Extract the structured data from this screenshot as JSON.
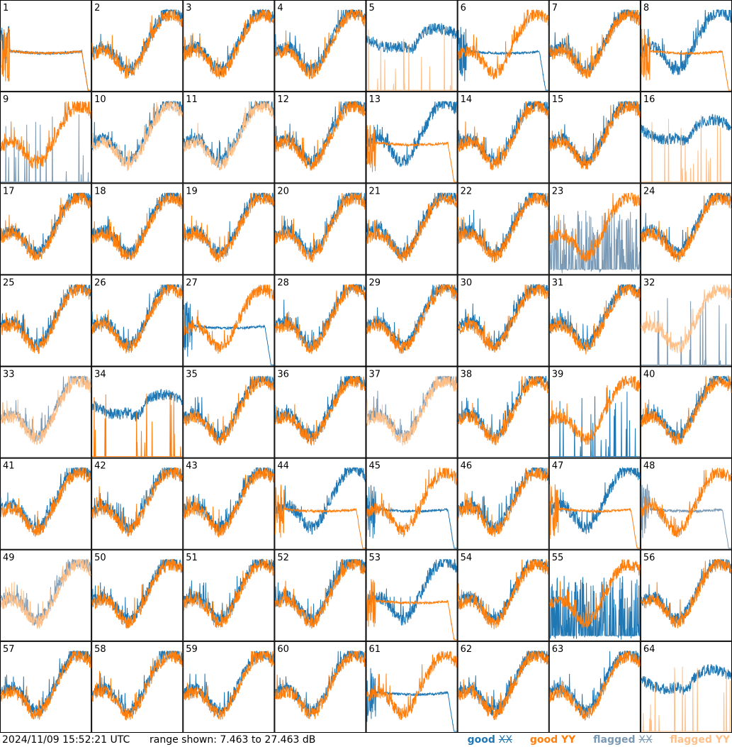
{
  "chart_data": {
    "type": "line",
    "layout": {
      "rows": 8,
      "cols": 8
    },
    "range_db": [
      7.463,
      27.463
    ],
    "series": [
      {
        "name": "good XX",
        "color": "#1f77b4"
      },
      {
        "name": "good YY",
        "color": "#ff7f0e"
      },
      {
        "name": "flagged XX",
        "color": "#7a99b4"
      },
      {
        "name": "flagged YY",
        "color": "#ffbf87"
      }
    ],
    "panels": [
      {
        "label": "1",
        "xx": "good",
        "yy": "good",
        "xx_shape": "decay",
        "yy_shape": "decay"
      },
      {
        "label": "2",
        "xx": "good",
        "yy": "good",
        "xx_shape": "normal",
        "yy_shape": "normal"
      },
      {
        "label": "3",
        "xx": "good",
        "yy": "good",
        "xx_shape": "normal",
        "yy_shape": "normal"
      },
      {
        "label": "4",
        "xx": "good",
        "yy": "good",
        "xx_shape": "normal",
        "yy_shape": "normal"
      },
      {
        "label": "5",
        "xx": "good",
        "yy": "flagged",
        "xx_shape": "high",
        "yy_shape": "spikes"
      },
      {
        "label": "6",
        "xx": "good",
        "yy": "good",
        "xx_shape": "decay",
        "yy_shape": "normal"
      },
      {
        "label": "7",
        "xx": "good",
        "yy": "good",
        "xx_shape": "normal",
        "yy_shape": "normal"
      },
      {
        "label": "8",
        "xx": "good",
        "yy": "good",
        "xx_shape": "normal",
        "yy_shape": "decay"
      },
      {
        "label": "9",
        "xx": "flagged",
        "yy": "good",
        "xx_shape": "spikes",
        "yy_shape": "normal"
      },
      {
        "label": "10",
        "xx": "good",
        "yy": "flagged",
        "xx_shape": "normal",
        "yy_shape": "normal"
      },
      {
        "label": "11",
        "xx": "good",
        "yy": "flagged",
        "xx_shape": "normal",
        "yy_shape": "normal"
      },
      {
        "label": "12",
        "xx": "good",
        "yy": "good",
        "xx_shape": "normal",
        "yy_shape": "normal"
      },
      {
        "label": "13",
        "xx": "good",
        "yy": "good",
        "xx_shape": "normal",
        "yy_shape": "decay"
      },
      {
        "label": "14",
        "xx": "good",
        "yy": "good",
        "xx_shape": "normal",
        "yy_shape": "normal"
      },
      {
        "label": "15",
        "xx": "good",
        "yy": "good",
        "xx_shape": "normal",
        "yy_shape": "normal"
      },
      {
        "label": "16",
        "xx": "good",
        "yy": "flagged",
        "xx_shape": "high",
        "yy_shape": "spikes"
      },
      {
        "label": "17",
        "xx": "good",
        "yy": "good",
        "xx_shape": "normal",
        "yy_shape": "normal"
      },
      {
        "label": "18",
        "xx": "good",
        "yy": "good",
        "xx_shape": "normal",
        "yy_shape": "normal"
      },
      {
        "label": "19",
        "xx": "good",
        "yy": "good",
        "xx_shape": "normal",
        "yy_shape": "normal"
      },
      {
        "label": "20",
        "xx": "good",
        "yy": "good",
        "xx_shape": "normal",
        "yy_shape": "normal"
      },
      {
        "label": "21",
        "xx": "good",
        "yy": "good",
        "xx_shape": "normal",
        "yy_shape": "normal"
      },
      {
        "label": "22",
        "xx": "good",
        "yy": "good",
        "xx_shape": "normal",
        "yy_shape": "normal"
      },
      {
        "label": "23",
        "xx": "flagged",
        "yy": "good",
        "xx_shape": "noisy",
        "yy_shape": "normal"
      },
      {
        "label": "24",
        "xx": "good",
        "yy": "good",
        "xx_shape": "normal",
        "yy_shape": "normal"
      },
      {
        "label": "25",
        "xx": "good",
        "yy": "good",
        "xx_shape": "normal",
        "yy_shape": "normal"
      },
      {
        "label": "26",
        "xx": "good",
        "yy": "good",
        "xx_shape": "normal",
        "yy_shape": "normal"
      },
      {
        "label": "27",
        "xx": "good",
        "yy": "good",
        "xx_shape": "decay",
        "yy_shape": "normal"
      },
      {
        "label": "28",
        "xx": "good",
        "yy": "good",
        "xx_shape": "normal",
        "yy_shape": "normal"
      },
      {
        "label": "29",
        "xx": "good",
        "yy": "good",
        "xx_shape": "normal",
        "yy_shape": "normal"
      },
      {
        "label": "30",
        "xx": "good",
        "yy": "good",
        "xx_shape": "normal",
        "yy_shape": "normal"
      },
      {
        "label": "31",
        "xx": "good",
        "yy": "good",
        "xx_shape": "normal",
        "yy_shape": "normal"
      },
      {
        "label": "32",
        "xx": "flagged",
        "yy": "flagged",
        "xx_shape": "spikes",
        "yy_shape": "normal"
      },
      {
        "label": "33",
        "xx": "flagged",
        "yy": "flagged",
        "xx_shape": "normal",
        "yy_shape": "normal"
      },
      {
        "label": "34",
        "xx": "good",
        "yy": "good",
        "xx_shape": "high",
        "yy_shape": "spikes"
      },
      {
        "label": "35",
        "xx": "good",
        "yy": "good",
        "xx_shape": "normal",
        "yy_shape": "normal"
      },
      {
        "label": "36",
        "xx": "good",
        "yy": "good",
        "xx_shape": "normal",
        "yy_shape": "normal"
      },
      {
        "label": "37",
        "xx": "flagged",
        "yy": "flagged",
        "xx_shape": "normal",
        "yy_shape": "normal"
      },
      {
        "label": "38",
        "xx": "good",
        "yy": "good",
        "xx_shape": "normal",
        "yy_shape": "normal"
      },
      {
        "label": "39",
        "xx": "good",
        "yy": "good",
        "xx_shape": "spikes",
        "yy_shape": "normal"
      },
      {
        "label": "40",
        "xx": "good",
        "yy": "good",
        "xx_shape": "normal",
        "yy_shape": "normal"
      },
      {
        "label": "41",
        "xx": "good",
        "yy": "good",
        "xx_shape": "normal",
        "yy_shape": "normal"
      },
      {
        "label": "42",
        "xx": "good",
        "yy": "good",
        "xx_shape": "normal",
        "yy_shape": "normal"
      },
      {
        "label": "43",
        "xx": "good",
        "yy": "good",
        "xx_shape": "normal",
        "yy_shape": "normal"
      },
      {
        "label": "44",
        "xx": "good",
        "yy": "good",
        "xx_shape": "normal",
        "yy_shape": "decay"
      },
      {
        "label": "45",
        "xx": "good",
        "yy": "good",
        "xx_shape": "decay",
        "yy_shape": "normal"
      },
      {
        "label": "46",
        "xx": "good",
        "yy": "good",
        "xx_shape": "normal",
        "yy_shape": "normal"
      },
      {
        "label": "47",
        "xx": "good",
        "yy": "good",
        "xx_shape": "normal",
        "yy_shape": "decay"
      },
      {
        "label": "48",
        "xx": "flagged",
        "yy": "good",
        "xx_shape": "decay",
        "yy_shape": "normal"
      },
      {
        "label": "49",
        "xx": "flagged",
        "yy": "flagged",
        "xx_shape": "normal",
        "yy_shape": "normal"
      },
      {
        "label": "50",
        "xx": "good",
        "yy": "good",
        "xx_shape": "normal",
        "yy_shape": "normal"
      },
      {
        "label": "51",
        "xx": "good",
        "yy": "good",
        "xx_shape": "normal",
        "yy_shape": "normal"
      },
      {
        "label": "52",
        "xx": "good",
        "yy": "good",
        "xx_shape": "normal",
        "yy_shape": "normal"
      },
      {
        "label": "53",
        "xx": "good",
        "yy": "good",
        "xx_shape": "normal",
        "yy_shape": "decay"
      },
      {
        "label": "54",
        "xx": "good",
        "yy": "good",
        "xx_shape": "normal",
        "yy_shape": "normal"
      },
      {
        "label": "55",
        "xx": "good",
        "yy": "good",
        "xx_shape": "noisy",
        "yy_shape": "normal"
      },
      {
        "label": "56",
        "xx": "good",
        "yy": "good",
        "xx_shape": "normal",
        "yy_shape": "normal"
      },
      {
        "label": "57",
        "xx": "good",
        "yy": "good",
        "xx_shape": "normal",
        "yy_shape": "normal"
      },
      {
        "label": "58",
        "xx": "good",
        "yy": "good",
        "xx_shape": "normal",
        "yy_shape": "normal"
      },
      {
        "label": "59",
        "xx": "good",
        "yy": "good",
        "xx_shape": "normal",
        "yy_shape": "normal"
      },
      {
        "label": "60",
        "xx": "good",
        "yy": "good",
        "xx_shape": "normal",
        "yy_shape": "normal"
      },
      {
        "label": "61",
        "xx": "good",
        "yy": "good",
        "xx_shape": "decay",
        "yy_shape": "normal"
      },
      {
        "label": "62",
        "xx": "good",
        "yy": "good",
        "xx_shape": "normal",
        "yy_shape": "normal"
      },
      {
        "label": "63",
        "xx": "good",
        "yy": "good",
        "xx_shape": "normal",
        "yy_shape": "normal"
      },
      {
        "label": "64",
        "xx": "good",
        "yy": "flagged",
        "xx_shape": "high",
        "yy_shape": "spikes"
      }
    ]
  },
  "footer": {
    "timestamp": "2024/11/09 15:52:21 UTC",
    "range_text": "range shown: 7.463 to 27.463 dB"
  },
  "legend": [
    {
      "prefix": "good",
      "pol": "XX",
      "color": "#1f77b4"
    },
    {
      "prefix": "good",
      "pol": "YY",
      "color": "#ff7f0e"
    },
    {
      "prefix": "flagged",
      "pol": "XX",
      "color": "#7a99b4"
    },
    {
      "prefix": "flagged",
      "pol": "YY",
      "color": "#ffbf87"
    }
  ]
}
